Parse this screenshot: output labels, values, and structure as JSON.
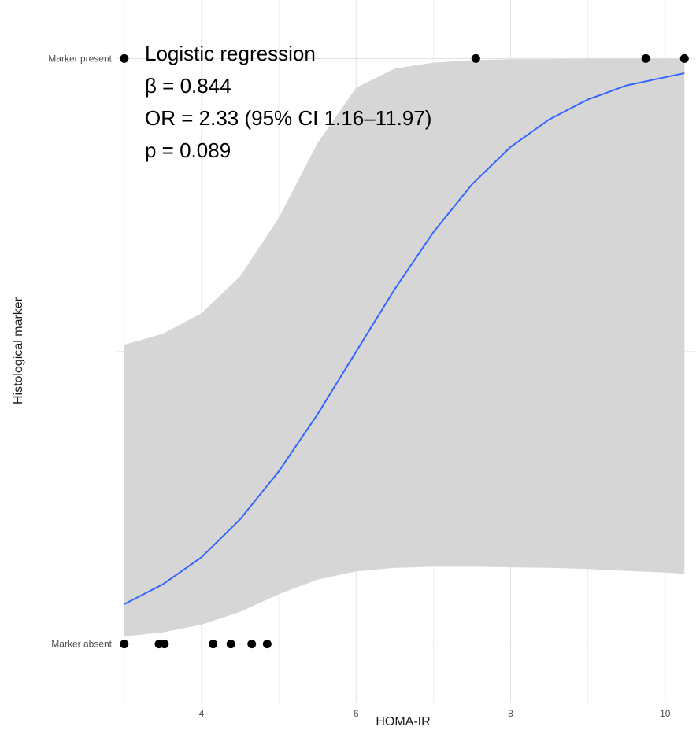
{
  "chart_data": {
    "type": "scatter",
    "xlabel": "HOMA-IR",
    "ylabel": "Histological marker",
    "xlim": [
      2.9,
      10.4
    ],
    "ylim": [
      -0.1,
      1.1
    ],
    "x_ticks": [
      4,
      6,
      8,
      10
    ],
    "x_tick_labels": [
      "4",
      "6",
      "8",
      "10"
    ],
    "y_ticks": [
      0,
      1
    ],
    "y_tick_labels": [
      "Marker absent",
      "Marker present"
    ],
    "grid": true,
    "points": [
      {
        "x": 3.0,
        "y": 0
      },
      {
        "x": 3.45,
        "y": 0
      },
      {
        "x": 3.52,
        "y": 0
      },
      {
        "x": 4.15,
        "y": 0
      },
      {
        "x": 4.38,
        "y": 0
      },
      {
        "x": 4.65,
        "y": 0
      },
      {
        "x": 4.85,
        "y": 0
      },
      {
        "x": 3.0,
        "y": 1
      },
      {
        "x": 7.55,
        "y": 1
      },
      {
        "x": 9.75,
        "y": 1
      },
      {
        "x": 10.25,
        "y": 1
      }
    ],
    "series": [
      {
        "type": "line",
        "color": "#3366ff",
        "x": [
          3.0,
          3.5,
          4.0,
          4.5,
          5.0,
          5.5,
          6.0,
          6.5,
          7.0,
          7.5,
          8.0,
          8.5,
          9.0,
          9.5,
          10.0,
          10.25
        ],
        "y": [
          0.068,
          0.102,
          0.148,
          0.213,
          0.295,
          0.392,
          0.499,
          0.606,
          0.703,
          0.785,
          0.849,
          0.896,
          0.93,
          0.954,
          0.968,
          0.975
        ]
      }
    ],
    "confidence_band": {
      "color": "#d6d6d6",
      "x": [
        3.0,
        3.5,
        4.0,
        4.5,
        5.0,
        5.5,
        6.0,
        6.5,
        7.0,
        7.5,
        8.0,
        8.5,
        9.0,
        9.5,
        10.0,
        10.25
      ],
      "lower": [
        0.013,
        0.02,
        0.033,
        0.055,
        0.085,
        0.11,
        0.124,
        0.13,
        0.132,
        0.132,
        0.131,
        0.13,
        0.128,
        0.125,
        0.122,
        0.12
      ],
      "upper": [
        0.511,
        0.53,
        0.565,
        0.628,
        0.728,
        0.855,
        0.95,
        0.983,
        0.993,
        0.997,
        0.999,
        0.999,
        1.0,
        1.0,
        1.0,
        1.0
      ]
    },
    "annotation": [
      "Logistic regression",
      "β = 0.844",
      "OR = 2.33 (95% CI 1.16–11.97)",
      "p = 0.089"
    ]
  }
}
